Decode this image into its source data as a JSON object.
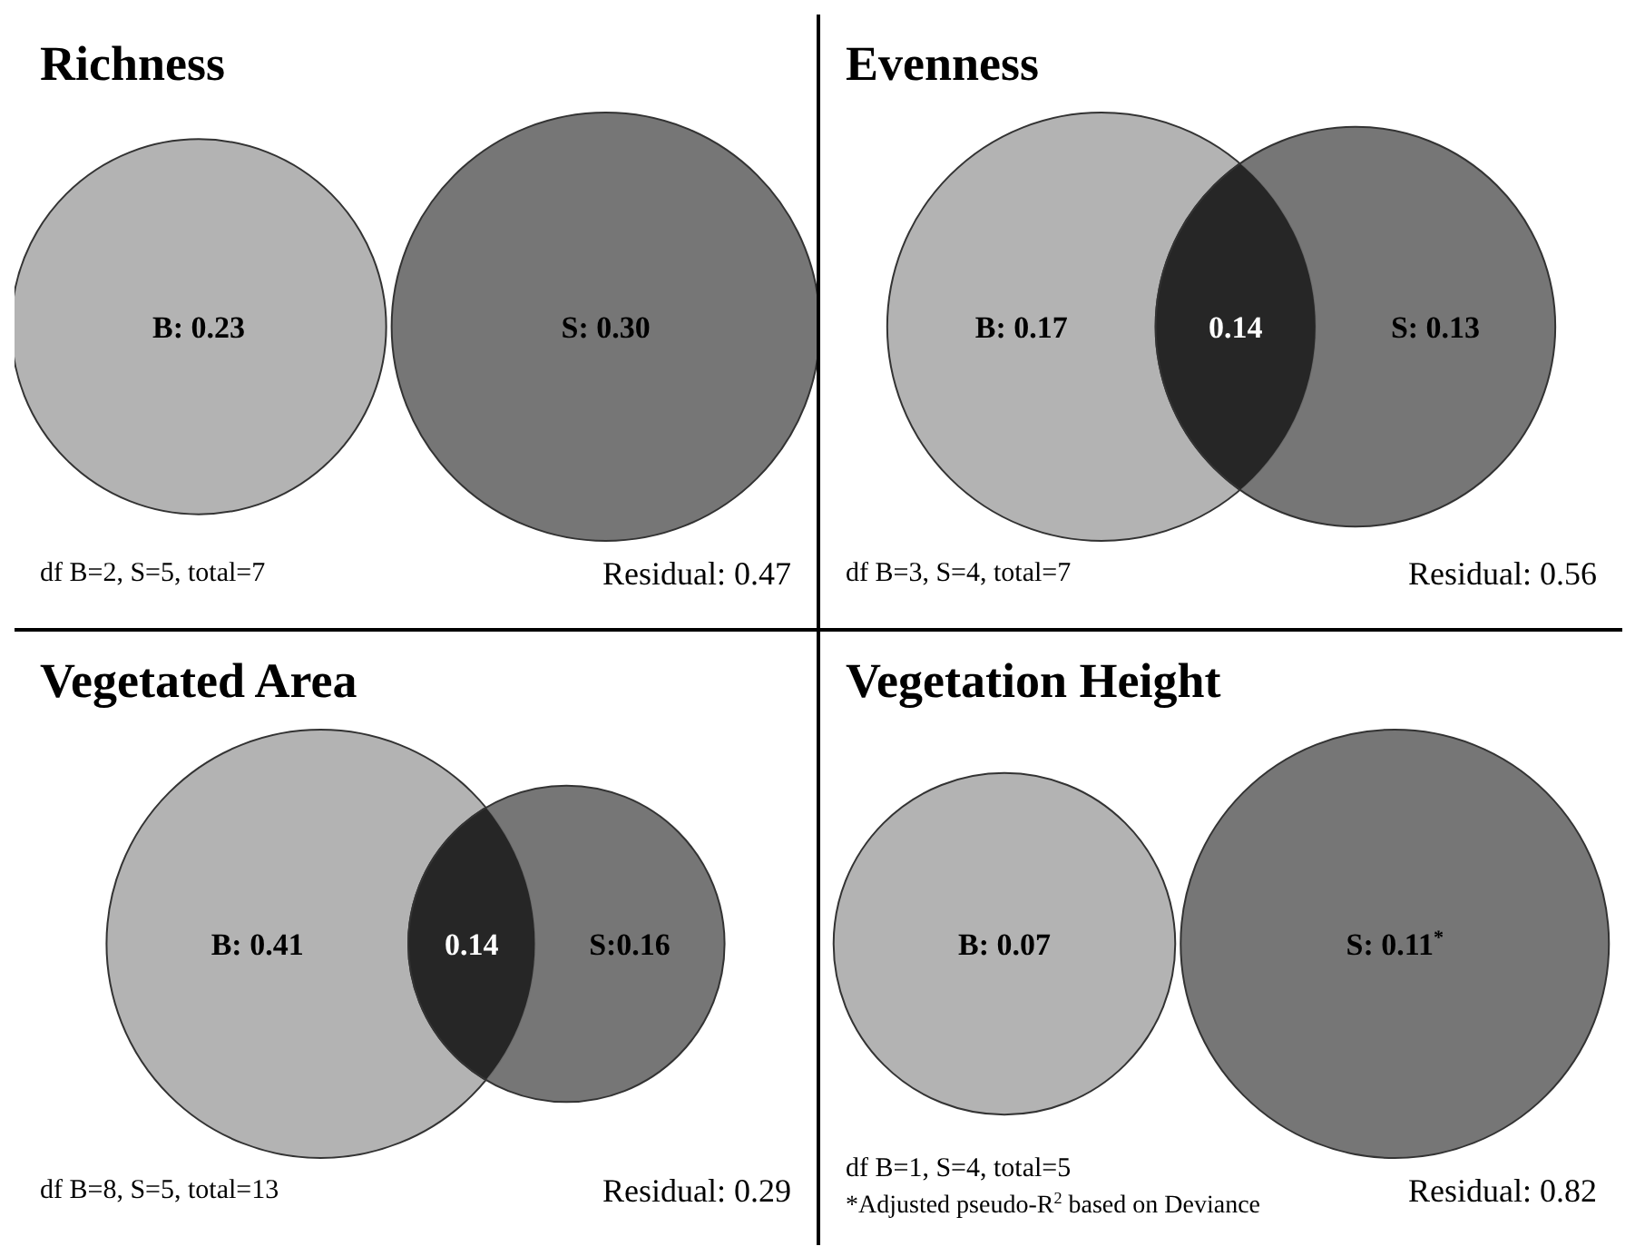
{
  "chart_data": [
    {
      "type": "other",
      "title": "Richness",
      "values": [
        0.23,
        0.3
      ],
      "value_labels": [
        "B: 0.23",
        "S: 0.30"
      ],
      "colors": [
        "#b3b3b3",
        "#6f6f6f"
      ],
      "annotations": [
        "df B=2, S=5, total=7",
        "Residual: 0.47"
      ]
    },
    {
      "type": "other",
      "title": "Evenness",
      "values": [
        0.17,
        0.14,
        0.13
      ],
      "value_labels": [
        "B: 0.17",
        "0.14",
        "S: 0.13"
      ],
      "colors": [
        "#b3b3b3",
        "#262626",
        "#6f6f6f"
      ],
      "annotations": [
        "df B=3, S=4, total=7",
        "Residual: 0.56"
      ]
    },
    {
      "type": "other",
      "title": "Vegetated Area",
      "values": [
        0.41,
        0.14,
        0.16
      ],
      "value_labels": [
        "B: 0.41",
        "0.14",
        "S:0.16"
      ],
      "colors": [
        "#b3b3b3",
        "#262626",
        "#6f6f6f"
      ],
      "annotations": [
        "df B=8, S=5, total=13",
        "Residual: 0.29"
      ]
    },
    {
      "type": "other",
      "title": "Vegetation Height",
      "values": [
        0.07,
        0.11
      ],
      "value_labels": [
        "B: 0.07",
        "S: 0.11$^{*}$"
      ],
      "colors": [
        "#b3b3b3",
        "#6f6f6f"
      ],
      "annotations": [
        "df B=1, S=4, total=5",
        "Residual: 0.82",
        "*Adjusted pseudo-R$^{2}$ based on Deviance"
      ]
    }
  ]
}
